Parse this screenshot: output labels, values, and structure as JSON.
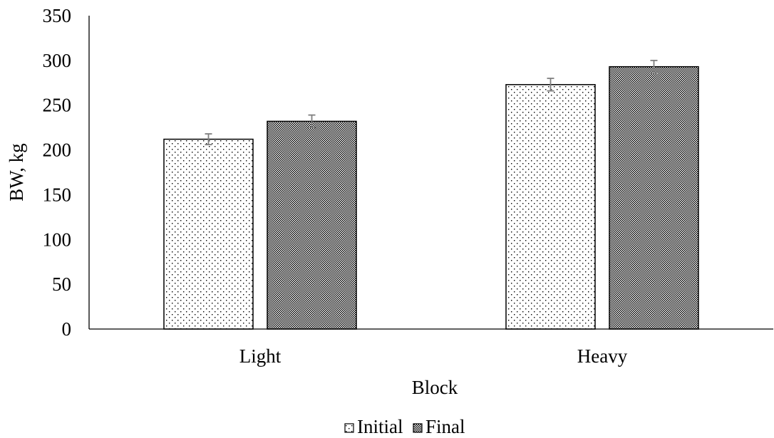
{
  "chart_data": {
    "type": "bar",
    "title": "",
    "xlabel": "Block",
    "ylabel": "BW, kg",
    "categories": [
      "Light",
      "Heavy"
    ],
    "ylim": [
      0,
      350
    ],
    "yticks": [
      "0",
      "50",
      "100",
      "150",
      "200",
      "250",
      "300",
      "350"
    ],
    "series": [
      {
        "name": "Initial",
        "pattern": "sparse-dots",
        "values": [
          212,
          273
        ],
        "errors": [
          6,
          7
        ]
      },
      {
        "name": "Final",
        "pattern": "dense-checker",
        "values": [
          232,
          293
        ],
        "errors": [
          7,
          7
        ]
      }
    ],
    "legend_position": "bottom-center",
    "grid": false,
    "colors": {
      "bar_border": "#000000",
      "error_bar": "#7f7f7f",
      "axis": "#000000"
    }
  }
}
